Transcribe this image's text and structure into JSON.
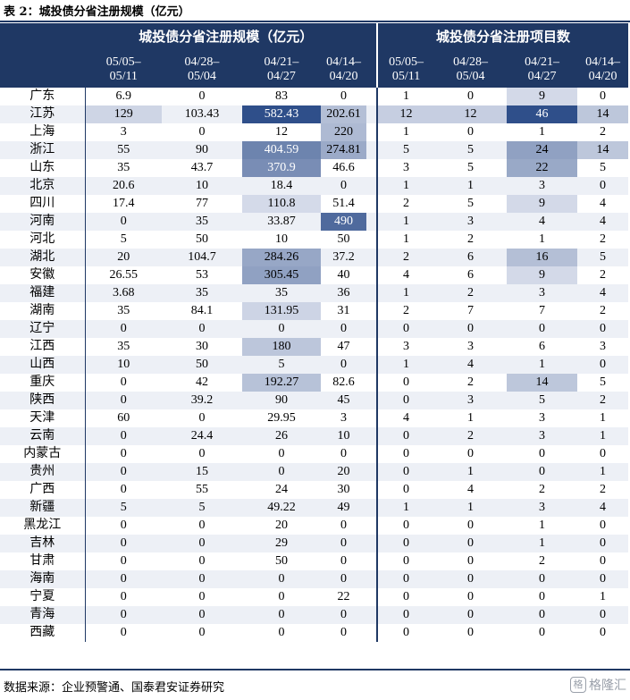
{
  "caption": "表 2：城投债分省注册规模（亿元）",
  "header": {
    "group_amount": "城投债分省注册规模（亿元）",
    "group_count": "城投债分省注册项目数",
    "periods": [
      [
        "05/05–",
        "05/11"
      ],
      [
        "04/28–",
        "05/04"
      ],
      [
        "04/21–",
        "04/27"
      ],
      [
        "04/14–",
        "04/20"
      ]
    ]
  },
  "colors": {
    "header_bg": "#1f3864",
    "header_text": "#ffffff"
  },
  "rows": [
    {
      "province": "广东",
      "amount": [
        "6.9",
        "0",
        "83",
        "0"
      ],
      "count": [
        "1",
        "0",
        "9",
        "0"
      ]
    },
    {
      "province": "江苏",
      "amount": [
        "129",
        "103.43",
        "582.43",
        "202.61"
      ],
      "count": [
        "12",
        "12",
        "46",
        "14"
      ]
    },
    {
      "province": "上海",
      "amount": [
        "3",
        "0",
        "12",
        "220"
      ],
      "count": [
        "1",
        "0",
        "1",
        "2"
      ]
    },
    {
      "province": "浙江",
      "amount": [
        "55",
        "90",
        "404.59",
        "274.81"
      ],
      "count": [
        "5",
        "5",
        "24",
        "14"
      ]
    },
    {
      "province": "山东",
      "amount": [
        "35",
        "43.7",
        "370.9",
        "46.6"
      ],
      "count": [
        "3",
        "5",
        "22",
        "5"
      ]
    },
    {
      "province": "北京",
      "amount": [
        "20.6",
        "10",
        "18.4",
        "0"
      ],
      "count": [
        "1",
        "1",
        "3",
        "0"
      ]
    },
    {
      "province": "四川",
      "amount": [
        "17.4",
        "77",
        "110.8",
        "51.4"
      ],
      "count": [
        "2",
        "5",
        "9",
        "4"
      ]
    },
    {
      "province": "河南",
      "amount": [
        "0",
        "35",
        "33.87",
        "490"
      ],
      "count": [
        "1",
        "3",
        "4",
        "4"
      ]
    },
    {
      "province": "河北",
      "amount": [
        "5",
        "50",
        "10",
        "50"
      ],
      "count": [
        "1",
        "2",
        "1",
        "2"
      ]
    },
    {
      "province": "湖北",
      "amount": [
        "20",
        "104.7",
        "284.26",
        "37.2"
      ],
      "count": [
        "2",
        "6",
        "16",
        "5"
      ]
    },
    {
      "province": "安徽",
      "amount": [
        "26.55",
        "53",
        "305.45",
        "40"
      ],
      "count": [
        "4",
        "6",
        "9",
        "2"
      ]
    },
    {
      "province": "福建",
      "amount": [
        "3.68",
        "35",
        "35",
        "36"
      ],
      "count": [
        "1",
        "2",
        "3",
        "4"
      ]
    },
    {
      "province": "湖南",
      "amount": [
        "35",
        "84.1",
        "131.95",
        "31"
      ],
      "count": [
        "2",
        "7",
        "7",
        "2"
      ]
    },
    {
      "province": "辽宁",
      "amount": [
        "0",
        "0",
        "0",
        "0"
      ],
      "count": [
        "0",
        "0",
        "0",
        "0"
      ]
    },
    {
      "province": "江西",
      "amount": [
        "35",
        "30",
        "180",
        "47"
      ],
      "count": [
        "3",
        "3",
        "6",
        "3"
      ]
    },
    {
      "province": "山西",
      "amount": [
        "10",
        "50",
        "5",
        "0"
      ],
      "count": [
        "1",
        "4",
        "1",
        "0"
      ]
    },
    {
      "province": "重庆",
      "amount": [
        "0",
        "42",
        "192.27",
        "82.6"
      ],
      "count": [
        "0",
        "2",
        "14",
        "5"
      ]
    },
    {
      "province": "陕西",
      "amount": [
        "0",
        "39.2",
        "90",
        "45"
      ],
      "count": [
        "0",
        "3",
        "5",
        "2"
      ]
    },
    {
      "province": "天津",
      "amount": [
        "60",
        "0",
        "29.95",
        "3"
      ],
      "count": [
        "4",
        "1",
        "3",
        "1"
      ]
    },
    {
      "province": "云南",
      "amount": [
        "0",
        "24.4",
        "26",
        "10"
      ],
      "count": [
        "0",
        "2",
        "3",
        "1"
      ]
    },
    {
      "province": "内蒙古",
      "amount": [
        "0",
        "0",
        "0",
        "0"
      ],
      "count": [
        "0",
        "0",
        "0",
        "0"
      ]
    },
    {
      "province": "贵州",
      "amount": [
        "0",
        "15",
        "0",
        "20"
      ],
      "count": [
        "0",
        "1",
        "0",
        "1"
      ]
    },
    {
      "province": "广西",
      "amount": [
        "0",
        "55",
        "24",
        "30"
      ],
      "count": [
        "0",
        "4",
        "2",
        "2"
      ]
    },
    {
      "province": "新疆",
      "amount": [
        "5",
        "5",
        "49.22",
        "49"
      ],
      "count": [
        "1",
        "1",
        "3",
        "4"
      ]
    },
    {
      "province": "黑龙江",
      "amount": [
        "0",
        "0",
        "20",
        "0"
      ],
      "count": [
        "0",
        "0",
        "1",
        "0"
      ]
    },
    {
      "province": "吉林",
      "amount": [
        "0",
        "0",
        "29",
        "0"
      ],
      "count": [
        "0",
        "0",
        "1",
        "0"
      ]
    },
    {
      "province": "甘肃",
      "amount": [
        "0",
        "0",
        "50",
        "0"
      ],
      "count": [
        "0",
        "0",
        "2",
        "0"
      ]
    },
    {
      "province": "海南",
      "amount": [
        "0",
        "0",
        "0",
        "0"
      ],
      "count": [
        "0",
        "0",
        "0",
        "0"
      ]
    },
    {
      "province": "宁夏",
      "amount": [
        "0",
        "0",
        "0",
        "22"
      ],
      "count": [
        "0",
        "0",
        "0",
        "1"
      ]
    },
    {
      "province": "青海",
      "amount": [
        "0",
        "0",
        "0",
        "0"
      ],
      "count": [
        "0",
        "0",
        "0",
        "0"
      ]
    },
    {
      "province": "西藏",
      "amount": [
        "0",
        "0",
        "0",
        "0"
      ],
      "count": [
        "0",
        "0",
        "0",
        "0"
      ]
    }
  ],
  "source": "数据来源：企业预警通、国泰君安证券研究",
  "watermark": "格隆汇"
}
